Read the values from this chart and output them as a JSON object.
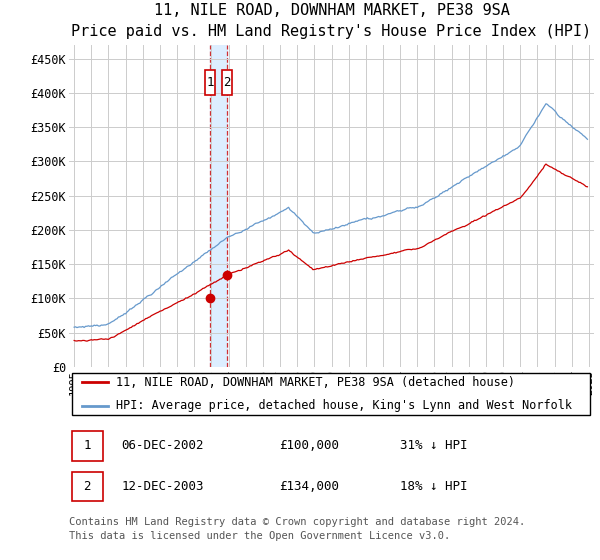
{
  "title": "11, NILE ROAD, DOWNHAM MARKET, PE38 9SA",
  "subtitle": "Price paid vs. HM Land Registry's House Price Index (HPI)",
  "ylim": [
    0,
    470000
  ],
  "yticks": [
    0,
    50000,
    100000,
    150000,
    200000,
    250000,
    300000,
    350000,
    400000,
    450000
  ],
  "ytick_labels": [
    "£0",
    "£50K",
    "£100K",
    "£150K",
    "£200K",
    "£250K",
    "£300K",
    "£350K",
    "£400K",
    "£450K"
  ],
  "red_line_label": "11, NILE ROAD, DOWNHAM MARKET, PE38 9SA (detached house)",
  "blue_line_label": "HPI: Average price, detached house, King's Lynn and West Norfolk",
  "t1_year_dec": 2002.917,
  "t2_year_dec": 2003.917,
  "t1_price": 100000,
  "t2_price": 134000,
  "transactions": [
    {
      "num": 1,
      "date_label": "06-DEC-2002",
      "price_label": "£100,000",
      "hpi_label": "31% ↓ HPI"
    },
    {
      "num": 2,
      "date_label": "12-DEC-2003",
      "price_label": "£134,000",
      "hpi_label": "18% ↓ HPI"
    }
  ],
  "footer": "Contains HM Land Registry data © Crown copyright and database right 2024.\nThis data is licensed under the Open Government Licence v3.0.",
  "red_color": "#cc0000",
  "blue_color": "#6699cc",
  "shade_color": "#ddeeff",
  "grid_color": "#cccccc",
  "background_color": "#ffffff",
  "title_fontsize": 11,
  "subtitle_fontsize": 10,
  "tick_fontsize": 8.5,
  "legend_fontsize": 8.5,
  "table_fontsize": 9,
  "footer_fontsize": 7.5
}
